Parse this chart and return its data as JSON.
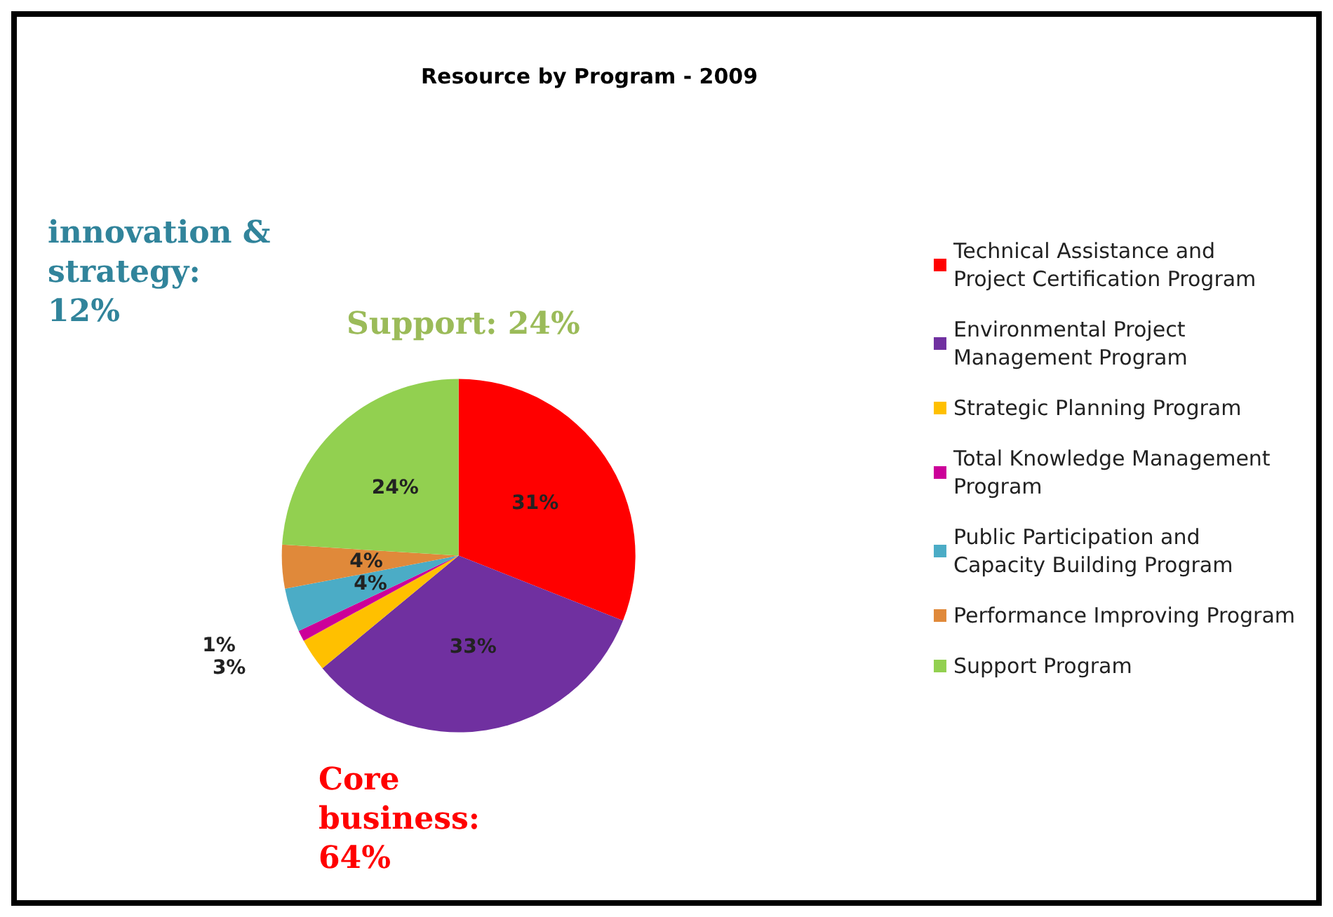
{
  "chart_data": {
    "type": "pie",
    "title": "Resource by Program - 2009",
    "categories": [
      "Technical Assistance and Project Certification Program",
      "Environmental Project Management Program",
      "Strategic Planning Program",
      "Total Knowledge Management Program",
      "Public Participation and Capacity Building Program",
      "Performance Improving Program",
      "Support Program"
    ],
    "values": [
      31,
      33,
      3,
      1,
      4,
      4,
      24
    ],
    "colors": [
      "#ff0000",
      "#7030a0",
      "#ffc000",
      "#cc0099",
      "#4bacc6",
      "#e0893a",
      "#92d050"
    ],
    "value_labels": [
      "31%",
      "33%",
      "3%",
      "1%",
      "4%",
      "4%",
      "24%"
    ],
    "annotations": [
      "innovation & strategy: 12%",
      "Support: 24%",
      "Core business: 64%"
    ],
    "legend": "right"
  }
}
